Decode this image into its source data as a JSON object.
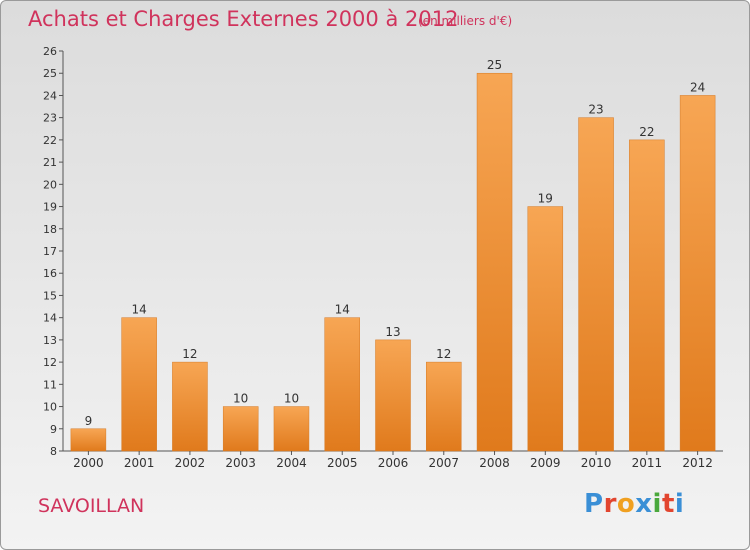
{
  "header": {
    "title": "Achats et Charges Externes 2000 à 2012",
    "subtitle": "(en milliers d'€)"
  },
  "footer": {
    "commune": "SAVOILLAN",
    "logo": "Proxiti"
  },
  "colors": {
    "title": "#d0335c",
    "bar_light": "#f7a654",
    "bar_dark": "#e07a1c",
    "logo_letters": [
      "#3a8fd6",
      "#e2452f",
      "#f0a020",
      "#3a8fd6",
      "#4aa83c",
      "#e2452f",
      "#3a8fd6"
    ]
  },
  "chart_data": {
    "type": "bar",
    "title": "Achats et Charges Externes 2000 à 2012",
    "subtitle": "(en milliers d'€)",
    "categories": [
      "2000",
      "2001",
      "2002",
      "2003",
      "2004",
      "2005",
      "2006",
      "2007",
      "2008",
      "2009",
      "2010",
      "2011",
      "2012"
    ],
    "values": [
      9,
      14,
      12,
      10,
      10,
      14,
      13,
      12,
      25,
      19,
      23,
      22,
      24
    ],
    "ylim": [
      8,
      26
    ],
    "yticks": [
      8,
      9,
      10,
      11,
      12,
      13,
      14,
      15,
      16,
      17,
      18,
      19,
      20,
      21,
      22,
      23,
      24,
      25,
      26
    ],
    "grid": false,
    "data_labels": true
  }
}
